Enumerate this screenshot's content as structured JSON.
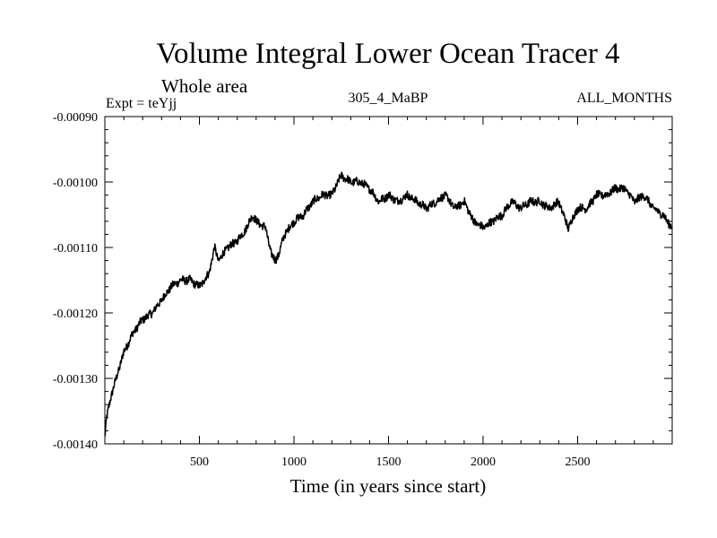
{
  "chart_data": {
    "type": "line",
    "title": "Volume Integral Lower Ocean Tracer 4",
    "subtitle": "Whole area",
    "expt_label": "Expt = teYjj",
    "run_label": "305_4_MaBP",
    "months_label": "ALL_MONTHS",
    "xlabel": "Time (in years since start)",
    "ylabel": "",
    "xlim": [
      0,
      3000
    ],
    "ylim": [
      -0.0014,
      -0.0009
    ],
    "xticks": [
      500,
      1000,
      1500,
      2000,
      2500
    ],
    "xtick_labels": [
      "500",
      "1000",
      "1500",
      "2000",
      "2500"
    ],
    "yticks": [
      -0.0009,
      -0.001,
      -0.0011,
      -0.0012,
      -0.0013,
      -0.0014
    ],
    "ytick_labels": [
      "-0.00090",
      "-0.00100",
      "-0.00110",
      "-0.00120",
      "-0.00130",
      "-0.00140"
    ],
    "series": [
      {
        "name": "tracer4",
        "color": "#000000",
        "x": [
          0,
          10,
          30,
          50,
          80,
          100,
          150,
          200,
          250,
          300,
          350,
          400,
          450,
          500,
          550,
          580,
          600,
          650,
          700,
          750,
          780,
          800,
          850,
          880,
          900,
          920,
          950,
          1000,
          1050,
          1100,
          1150,
          1200,
          1250,
          1300,
          1350,
          1400,
          1450,
          1500,
          1550,
          1600,
          1650,
          1700,
          1750,
          1800,
          1850,
          1900,
          1950,
          2000,
          2050,
          2100,
          2150,
          2200,
          2250,
          2300,
          2350,
          2400,
          2450,
          2500,
          2550,
          2600,
          2650,
          2700,
          2750,
          2800,
          2850,
          2900,
          2950,
          3000
        ],
        "values": [
          -0.00139,
          -0.00136,
          -0.00133,
          -0.00131,
          -0.00128,
          -0.00126,
          -0.00123,
          -0.00121,
          -0.0012,
          -0.00118,
          -0.00116,
          -0.00115,
          -0.00115,
          -0.00116,
          -0.00114,
          -0.0011,
          -0.00112,
          -0.0011,
          -0.00109,
          -0.00107,
          -0.00105,
          -0.00106,
          -0.00107,
          -0.00111,
          -0.00112,
          -0.00111,
          -0.00108,
          -0.00106,
          -0.00105,
          -0.00103,
          -0.00102,
          -0.00102,
          -0.00099,
          -0.001,
          -0.001,
          -0.00101,
          -0.00103,
          -0.00102,
          -0.00103,
          -0.00102,
          -0.00103,
          -0.00104,
          -0.00103,
          -0.00102,
          -0.00104,
          -0.00103,
          -0.00106,
          -0.00107,
          -0.00106,
          -0.00105,
          -0.00103,
          -0.00104,
          -0.00103,
          -0.00103,
          -0.00104,
          -0.00103,
          -0.00107,
          -0.00104,
          -0.00104,
          -0.00102,
          -0.00102,
          -0.00101,
          -0.00101,
          -0.00103,
          -0.00102,
          -0.00104,
          -0.00105,
          -0.00107
        ]
      }
    ]
  }
}
